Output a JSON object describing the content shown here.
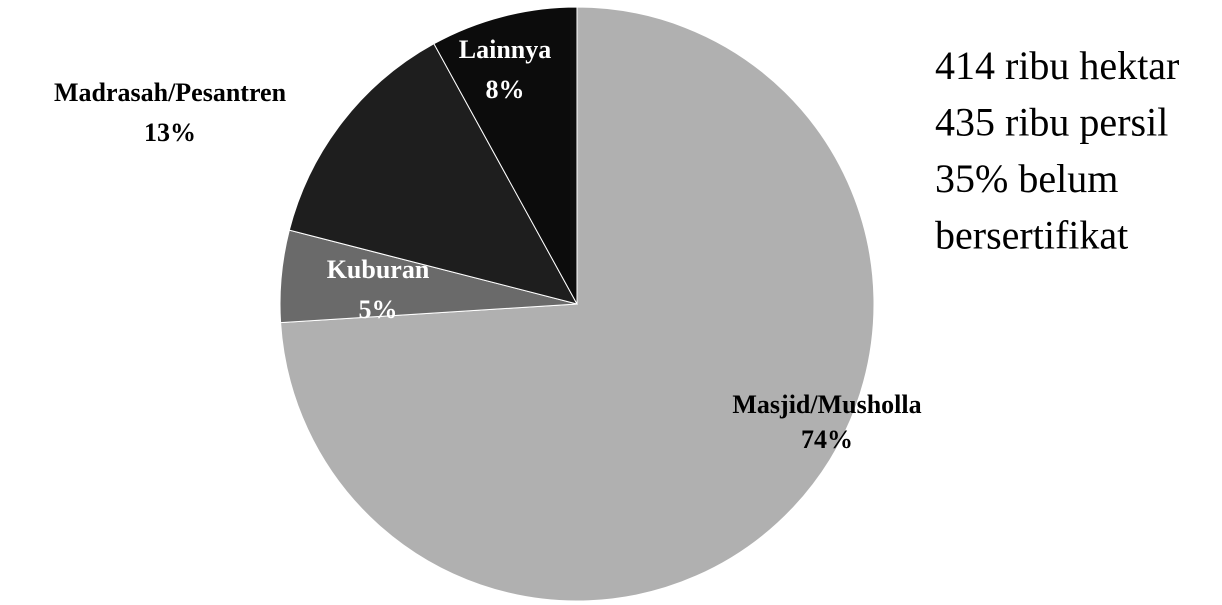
{
  "chart_data": {
    "type": "pie",
    "categories": [
      "Masjid/Musholla",
      "Kuburan",
      "Madrasah/Pesantren",
      "Lainnya"
    ],
    "values": [
      74,
      5,
      13,
      8
    ],
    "value_labels": [
      "74%",
      "5%",
      "13%",
      "8%"
    ],
    "colors": [
      "#b0b0b0",
      "#6a6a6a",
      "#1e1e1e",
      "#0c0c0c"
    ],
    "annotations": [
      "414 ribu hektar",
      "435 ribu persil",
      "35% belum",
      "bersertifikat"
    ]
  }
}
